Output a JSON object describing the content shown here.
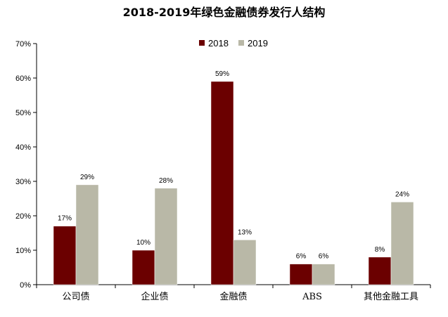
{
  "chart_data": {
    "type": "bar",
    "title": "2018-2019年绿色金融债券发行人结构",
    "xlabel": "",
    "ylabel": "",
    "categories": [
      "公司债",
      "企业债",
      "金融债",
      "ABS",
      "其他金融工具"
    ],
    "series": [
      {
        "name": "2018",
        "color": "#6b0000",
        "values": [
          17,
          10,
          59,
          6,
          8
        ],
        "labels": [
          "17%",
          "10%",
          "59%",
          "6%",
          "8%"
        ]
      },
      {
        "name": "2019",
        "color": "#b9b8a7",
        "values": [
          29,
          28,
          13,
          6,
          24
        ],
        "labels": [
          "29%",
          "28%",
          "13%",
          "6%",
          "24%"
        ]
      }
    ],
    "ylim": [
      0,
      70
    ],
    "yticks": [
      0,
      10,
      20,
      30,
      40,
      50,
      60,
      70
    ],
    "ytick_labels": [
      "0%",
      "10%",
      "20%",
      "30%",
      "40%",
      "50%",
      "60%",
      "70%"
    ],
    "grid": false,
    "legend_position": "top-center"
  }
}
